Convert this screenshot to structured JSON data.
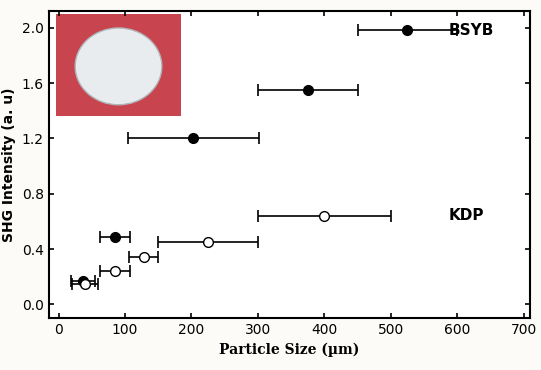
{
  "chart_data": {
    "type": "scatter",
    "x_label": "Particle Size (µm)",
    "y_label": "SHG Intensity (a. u)",
    "xlim": [
      -15,
      710
    ],
    "ylim": [
      -0.1,
      2.12
    ],
    "xticks": [
      0,
      100,
      200,
      300,
      400,
      500,
      600,
      700
    ],
    "yticks": [
      {
        "value": 0,
        "label": "0.0"
      },
      {
        "value": 0.4,
        "label": "0.4"
      },
      {
        "value": 0.8,
        "label": "0.8"
      },
      {
        "value": 1.2,
        "label": "1.2"
      },
      {
        "value": 1.6,
        "label": "1.6"
      },
      {
        "value": 2.0,
        "label": "2.0"
      }
    ],
    "grid": false,
    "series": [
      {
        "name": "BSYB",
        "color": "#000000",
        "marker": "filled",
        "x": [
          37,
          85,
          203,
          375,
          525
        ],
        "values": [
          0.17,
          0.49,
          1.2,
          1.55,
          1.98
        ],
        "xerr": [
          18,
          22,
          98,
          75,
          75
        ]
      },
      {
        "name": "KDP",
        "color": "#000000",
        "marker": "open",
        "x": [
          40,
          85,
          128,
          225,
          400
        ],
        "values": [
          0.15,
          0.24,
          0.34,
          0.45,
          0.64
        ],
        "xerr": [
          20,
          22,
          22,
          75,
          100
        ]
      }
    ]
  }
}
